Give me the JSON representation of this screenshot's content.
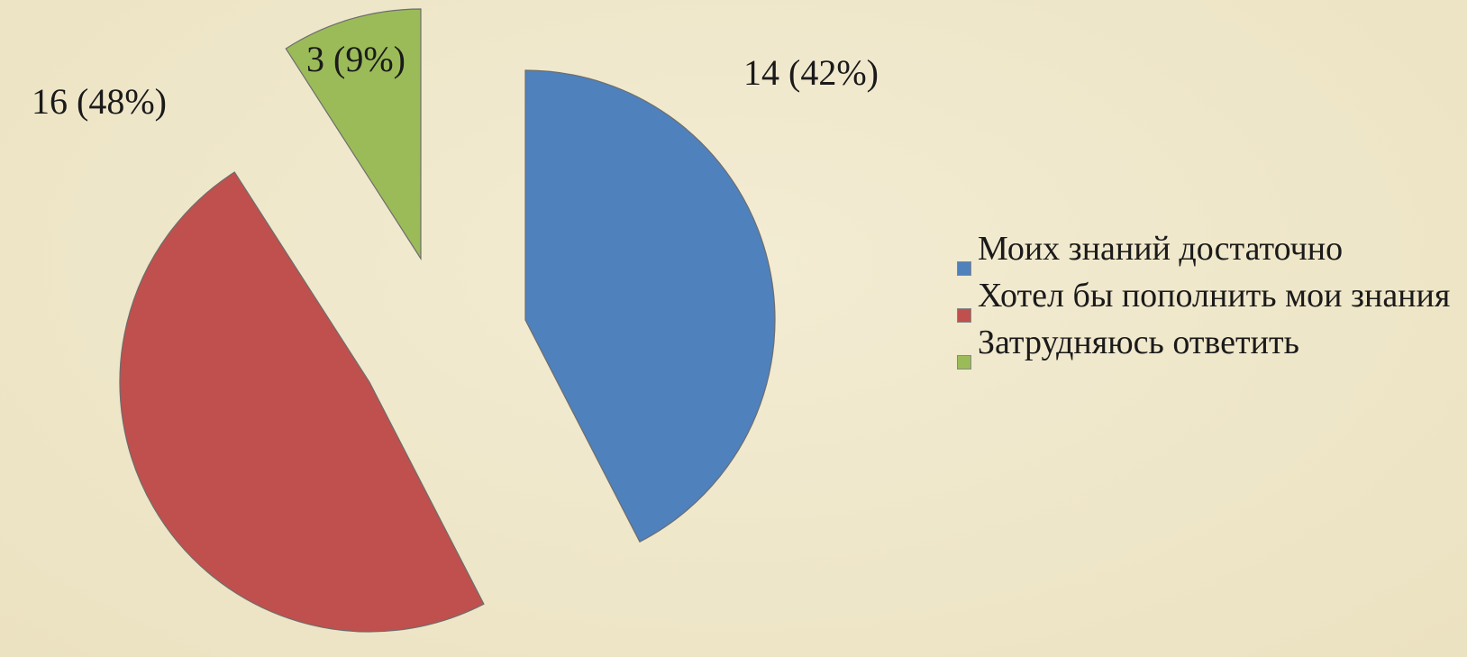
{
  "chart_data": {
    "type": "pie",
    "categories": [
      "Моих знаний достаточно",
      "Хотел бы пополнить мои знания",
      "Затрудняюсь ответить"
    ],
    "values": [
      14,
      16,
      3
    ],
    "value_labels": [
      "14 (42%)",
      "16 (48%)",
      "3 (9%)"
    ],
    "colors": [
      "#4f81bd",
      "#c0504d",
      "#9bbb59"
    ],
    "legend": "right"
  }
}
